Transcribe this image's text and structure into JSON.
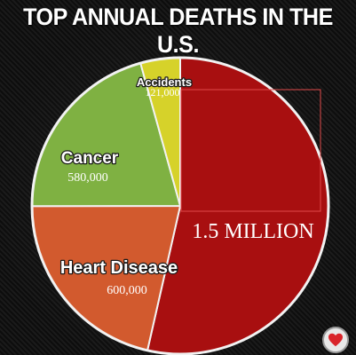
{
  "header": {
    "title": "TOP ANNUAL DEATHS IN THE U.S."
  },
  "chart_data": {
    "type": "pie",
    "title": "TOP ANNUAL DEATHS IN THE U.S.",
    "slices": [
      {
        "label": "",
        "value": 1500000,
        "value_label": "1.5 MILLION",
        "color": "#a80f10"
      },
      {
        "label": "Heart Disease",
        "value": 600000,
        "value_label": "600,000",
        "color": "#d25a2e"
      },
      {
        "label": "Cancer",
        "value": 580000,
        "value_label": "580,000",
        "color": "#7fb142"
      },
      {
        "label": "Accidents",
        "value": 121000,
        "value_label": "121,000",
        "color": "#d6d22a"
      }
    ]
  },
  "badge": {
    "icon": "heart-icon",
    "color": "#d9242a"
  }
}
